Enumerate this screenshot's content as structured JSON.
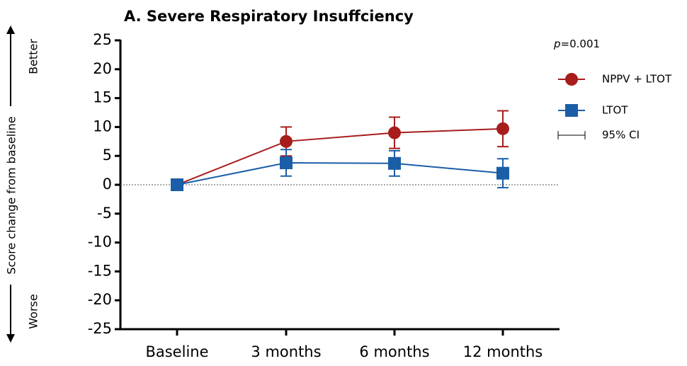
{
  "chart_data": {
    "type": "line",
    "title": "A. Severe Respiratory Insuffciency",
    "y_label": "Score change from baseline",
    "y_top_label": "Better",
    "y_bottom_label": "Worse",
    "annotation": {
      "italic": "p",
      "text": "=0.001"
    },
    "error_legend": "95% CI",
    "categories": [
      "Baseline",
      "3 months",
      "6 months",
      "12 months"
    ],
    "series": [
      {
        "name": "NPPV + LTOT",
        "color": "#a81c1c",
        "marker": "circle",
        "values": [
          0,
          7.5,
          9,
          9.7
        ],
        "errors": [
          null,
          2.5,
          2.7,
          3.1
        ]
      },
      {
        "name": "LTOT",
        "color": "#1b5ea8",
        "marker": "square",
        "values": [
          0,
          3.8,
          3.7,
          2.0
        ],
        "errors": [
          null,
          2.3,
          2.2,
          2.5
        ]
      }
    ],
    "ylim": [
      -25,
      25
    ],
    "yticks": [
      -25,
      -20,
      -15,
      -10,
      -5,
      0,
      5,
      10,
      15,
      20,
      25
    ],
    "reference_line": 0
  }
}
